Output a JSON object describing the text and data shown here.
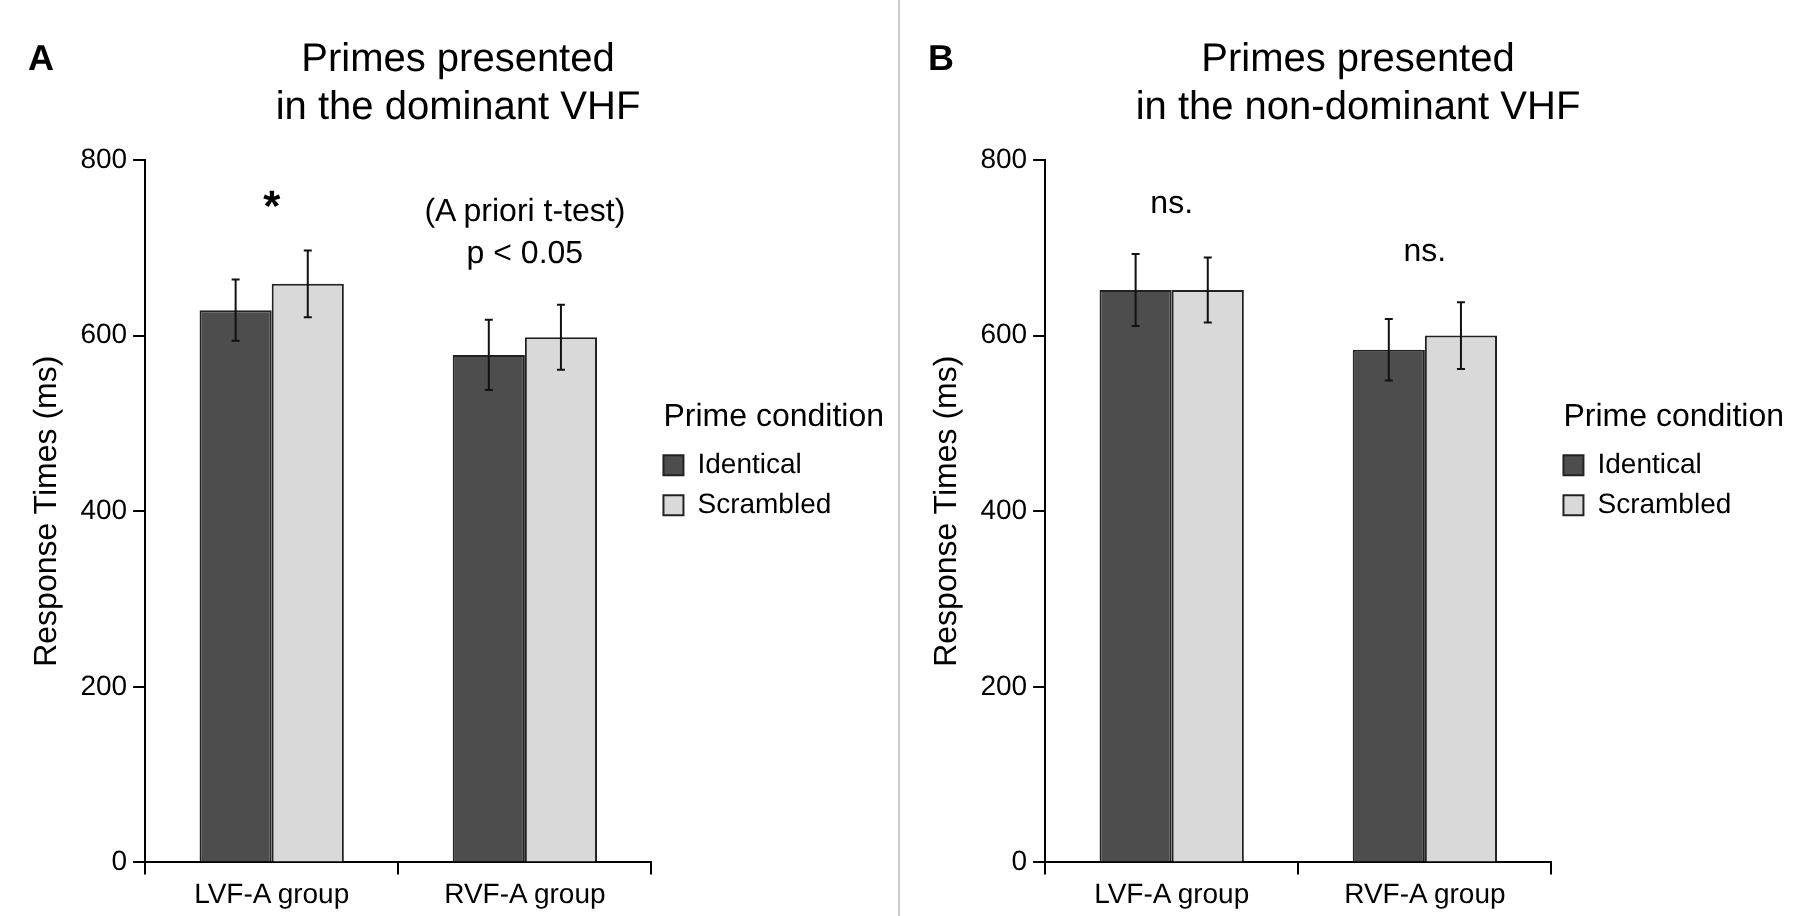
{
  "chart_data": [
    {
      "type": "bar",
      "title": "Primes presented\nin the dominant VHF",
      "ylabel": "Response Times (ms)",
      "legend_title": "Prime condition",
      "legend": "right",
      "grid": false,
      "categories": [
        "LVF-A group",
        "RVF-A group"
      ],
      "series": [
        {
          "name": "Identical",
          "color": "#4d4d4d",
          "values": [
            629,
            578
          ],
          "errors": [
            35,
            40
          ]
        },
        {
          "name": "Scrambled",
          "color": "#d9d9d9",
          "values": [
            659,
            598
          ],
          "errors": [
            38,
            37
          ]
        }
      ],
      "ylim": [
        0,
        800
      ],
      "yticks": [
        0,
        200,
        400,
        600,
        800
      ],
      "annotations": [
        "A",
        "*",
        "(A priori t-test)\np < 0.05"
      ]
    },
    {
      "type": "bar",
      "title": "Primes presented\nin the non-dominant VHF",
      "ylabel": "Response Times (ms)",
      "legend_title": "Prime condition",
      "legend": "right",
      "grid": false,
      "categories": [
        "LVF-A group",
        "RVF-A group"
      ],
      "series": [
        {
          "name": "Identical",
          "color": "#4d4d4d",
          "values": [
            652,
            584
          ],
          "errors": [
            41,
            35
          ]
        },
        {
          "name": "Scrambled",
          "color": "#d9d9d9",
          "values": [
            652,
            600
          ],
          "errors": [
            37,
            38
          ]
        }
      ],
      "ylim": [
        0,
        800
      ],
      "yticks": [
        0,
        200,
        400,
        600,
        800
      ],
      "annotations": [
        "B",
        "ns.",
        "ns."
      ]
    }
  ]
}
